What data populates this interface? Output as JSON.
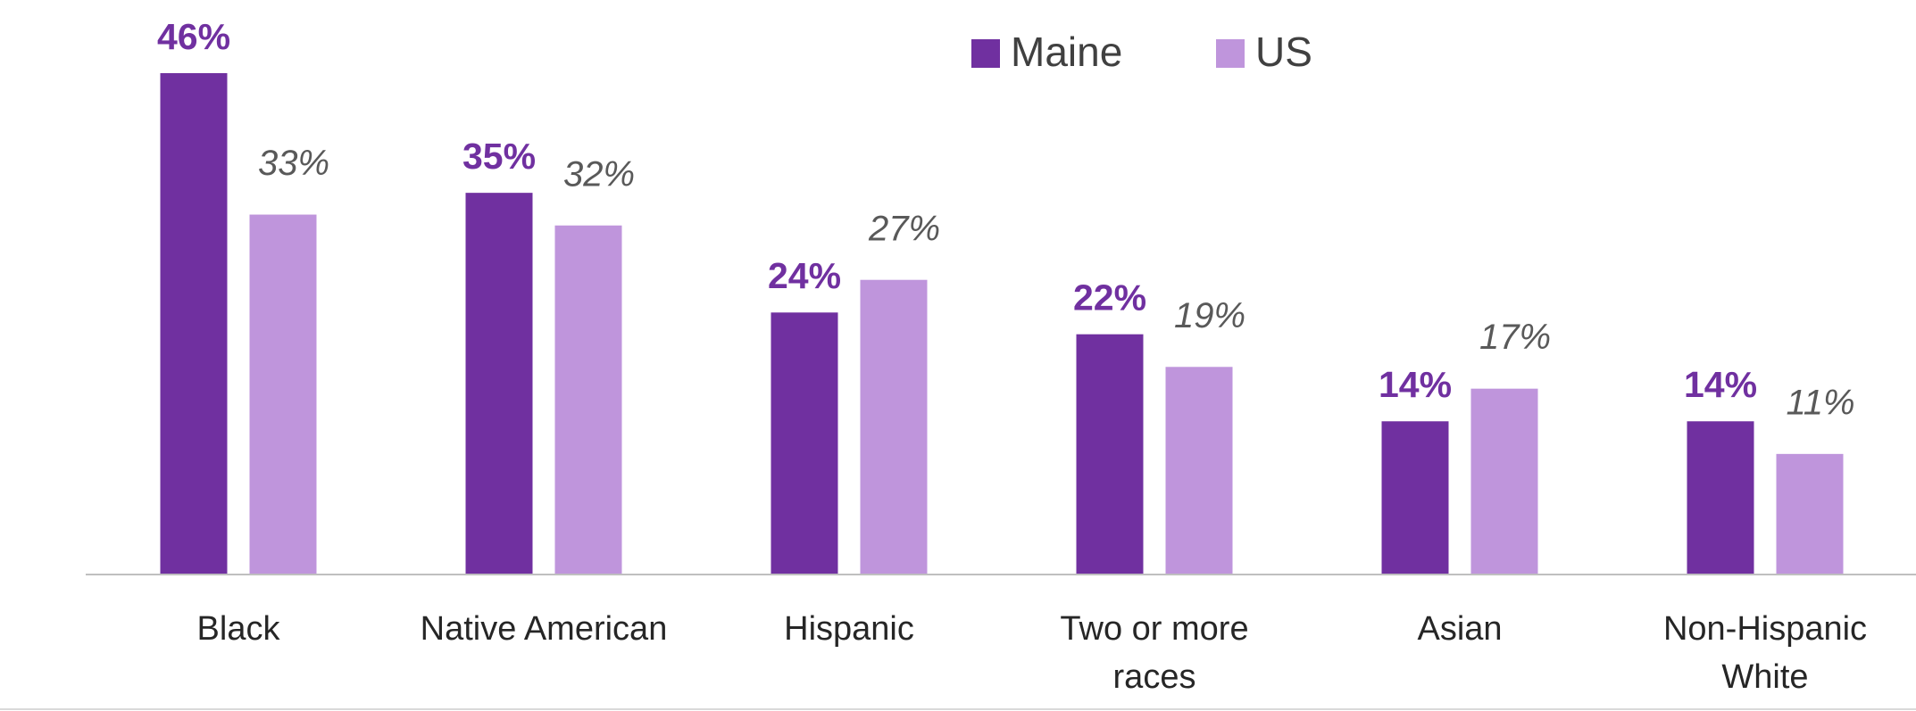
{
  "chart_data": {
    "type": "bar",
    "categories": [
      "Black",
      "Native American",
      "Hispanic",
      "Two or more races",
      "Asian",
      "Non-Hispanic White"
    ],
    "series": [
      {
        "name": "Maine",
        "color": "#7030a0",
        "values": [
          46,
          35,
          24,
          22,
          14,
          14
        ],
        "value_labels": [
          "46%",
          "35%",
          "24%",
          "22%",
          "14%",
          "14%"
        ]
      },
      {
        "name": "US",
        "color": "#bf95dc",
        "values": [
          33,
          32,
          27,
          19,
          17,
          11
        ],
        "value_labels": [
          "33%",
          "32%",
          "27%",
          "19%",
          "17%",
          "11%"
        ]
      }
    ]
  }
}
